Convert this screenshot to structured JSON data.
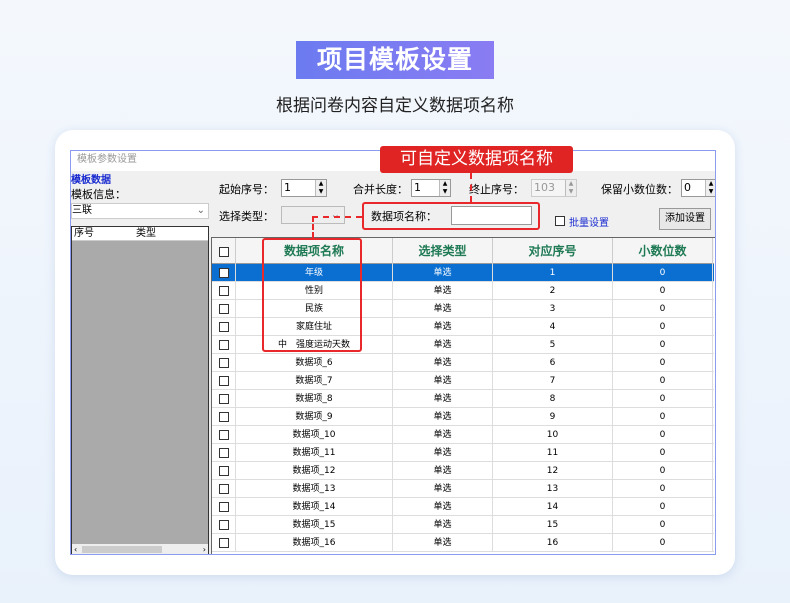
{
  "header": {
    "title": "项目模板设置",
    "subtitle": "根据问卷内容自定义数据项名称"
  },
  "window": {
    "title": "模板参数设置",
    "left": {
      "group_label": "模板数据",
      "info_label": "模板信息：",
      "template_select": "三联",
      "list_cols": [
        "序号",
        "类型"
      ]
    },
    "form": {
      "start_label": "起始序号：",
      "start_value": "1",
      "merge_label": "合并长度：",
      "merge_value": "1",
      "end_label": "终止序号：",
      "end_value": "103",
      "decimal_label": "保留小数位数：",
      "decimal_value": "0",
      "type_label": "选择类型：",
      "type_value": "",
      "name_label": "数据项名称：",
      "name_value": "",
      "batch_label": "批量设置",
      "add_button": "添加设置"
    },
    "grid": {
      "columns": [
        "数据项名称",
        "选择类型",
        "对应序号",
        "小数位数"
      ],
      "rows": [
        [
          "年级",
          "单选",
          "1",
          "0"
        ],
        [
          "性别",
          "单选",
          "2",
          "0"
        ],
        [
          "民族",
          "单选",
          "3",
          "0"
        ],
        [
          "家庭住址",
          "单选",
          "4",
          "0"
        ],
        [
          "中　强度运动天数",
          "单选",
          "5",
          "0"
        ],
        [
          "数据项_6",
          "单选",
          "6",
          "0"
        ],
        [
          "数据项_7",
          "单选",
          "7",
          "0"
        ],
        [
          "数据项_8",
          "单选",
          "8",
          "0"
        ],
        [
          "数据项_9",
          "单选",
          "9",
          "0"
        ],
        [
          "数据项_10",
          "单选",
          "10",
          "0"
        ],
        [
          "数据项_11",
          "单选",
          "11",
          "0"
        ],
        [
          "数据项_12",
          "单选",
          "12",
          "0"
        ],
        [
          "数据项_13",
          "单选",
          "13",
          "0"
        ],
        [
          "数据项_14",
          "单选",
          "14",
          "0"
        ],
        [
          "数据项_15",
          "单选",
          "15",
          "0"
        ],
        [
          "数据项_16",
          "单选",
          "16",
          "0"
        ]
      ],
      "selected_row": 0
    }
  },
  "callout": "可自定义数据项名称",
  "colors": {
    "accent": "#e02424",
    "selection": "#0a6fd1",
    "header_text": "#1f7a55"
  }
}
